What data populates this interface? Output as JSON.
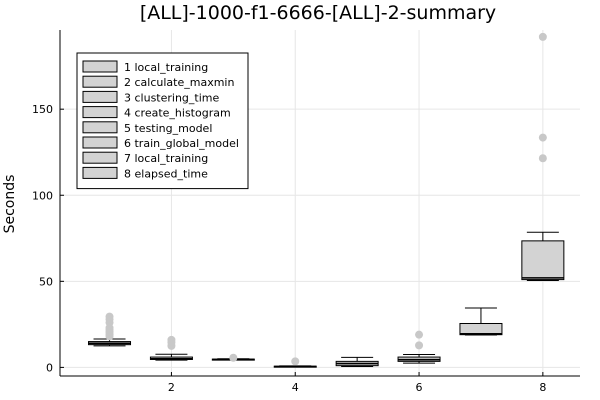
{
  "chart_data": {
    "type": "box",
    "title": "[ALL]-1000-f1-6666-[ALL]-2-summary",
    "xlabel": "",
    "ylabel": "Seconds",
    "xlim": [
      0.2,
      8.6
    ],
    "ylim": [
      -5,
      196
    ],
    "x_ticks": [
      2,
      4,
      6,
      8
    ],
    "y_ticks": [
      0,
      50,
      100,
      150
    ],
    "grid": true,
    "legend_position": "top-left",
    "box_color": "#d3d3d3",
    "outlier_color": "#c8c8c8",
    "series": [
      {
        "name": "1 local_training",
        "x": 1,
        "whisker_low": 12.5,
        "q1": 13.2,
        "median": 14.0,
        "q3": 15.0,
        "whisker_high": 16.5,
        "outliers": [
          18.0,
          19.0,
          20.0,
          21.0,
          22.0,
          23.0,
          26.0,
          28.0,
          29.5
        ]
      },
      {
        "name": "2 calculate_maxmin",
        "x": 2,
        "whisker_low": 4.2,
        "q1": 4.6,
        "median": 5.0,
        "q3": 6.0,
        "whisker_high": 7.6,
        "outliers": [
          12.5,
          14.5,
          16.0
        ]
      },
      {
        "name": "3 clustering_time",
        "x": 3,
        "whisker_low": 4.3,
        "q1": 4.4,
        "median": 4.6,
        "q3": 4.8,
        "whisker_high": 5.0,
        "outliers": [
          5.6
        ]
      },
      {
        "name": "4 create_histogram",
        "x": 4,
        "whisker_low": 0.3,
        "q1": 0.4,
        "median": 0.5,
        "q3": 0.7,
        "whisker_high": 0.9,
        "outliers": [
          3.5
        ]
      },
      {
        "name": "5 testing_model",
        "x": 5,
        "whisker_low": 0.5,
        "q1": 1.0,
        "median": 2.2,
        "q3": 3.5,
        "whisker_high": 5.8,
        "outliers": []
      },
      {
        "name": "6 train_global_model",
        "x": 6,
        "whisker_low": 2.5,
        "q1": 3.5,
        "median": 4.5,
        "q3": 6.0,
        "whisker_high": 7.5,
        "outliers": [
          12.8,
          19.0
        ]
      },
      {
        "name": "7 local_training",
        "x": 7,
        "whisker_low": 18.8,
        "q1": 19.0,
        "median": 19.5,
        "q3": 25.5,
        "whisker_high": 34.5,
        "outliers": []
      },
      {
        "name": "8 elapsed_time",
        "x": 8,
        "whisker_low": 50.5,
        "q1": 51.0,
        "median": 52.0,
        "q3": 73.5,
        "whisker_high": 78.5,
        "outliers": [
          121.5,
          133.5,
          192.0
        ]
      }
    ]
  }
}
